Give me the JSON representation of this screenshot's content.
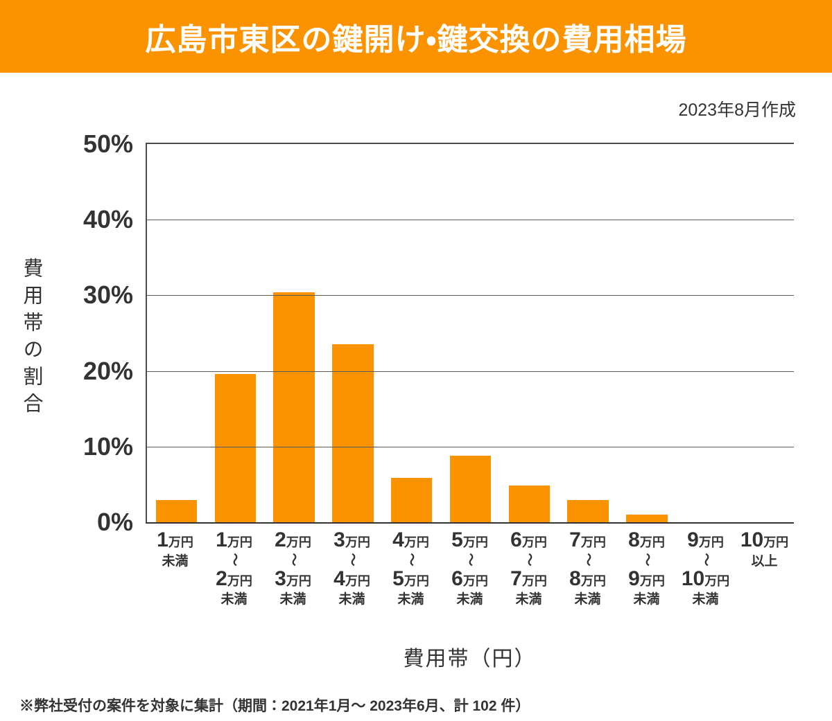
{
  "header": {
    "title": "広島市東区の鍵開け・鍵交換の費用相場",
    "created": "2023年8月作成"
  },
  "footer": {
    "note": "※弊社受付の案件を対象に集計（期間：2021年1月～ 2023年6月、計 102 件）"
  },
  "colors": {
    "accent": "#fb9300",
    "text": "#333333",
    "grid": "#595959"
  },
  "unit": "万円",
  "tilde": "～",
  "x_categories": [
    {
      "from": "1",
      "to": "",
      "note": "未満"
    },
    {
      "from": "1",
      "to": "2",
      "note": "未満"
    },
    {
      "from": "2",
      "to": "3",
      "note": "未満"
    },
    {
      "from": "3",
      "to": "4",
      "note": "未満"
    },
    {
      "from": "4",
      "to": "5",
      "note": "未満"
    },
    {
      "from": "5",
      "to": "6",
      "note": "未満"
    },
    {
      "from": "6",
      "to": "7",
      "note": "未満"
    },
    {
      "from": "7",
      "to": "8",
      "note": "未満"
    },
    {
      "from": "8",
      "to": "9",
      "note": "未満"
    },
    {
      "from": "9",
      "to": "10",
      "note": "未満"
    },
    {
      "from": "10",
      "to": "",
      "note": "以上"
    }
  ],
  "chart_data": {
    "type": "bar",
    "title": "広島市東区の鍵開け・鍵交換の費用相場",
    "categories": [
      "1万円未満",
      "1万円～2万円未満",
      "2万円～3万円未満",
      "3万円～4万円未満",
      "4万円～5万円未満",
      "5万円～6万円未満",
      "6万円～7万円未満",
      "7万円～8万円未満",
      "8万円～9万円未満",
      "9万円～10万円未満",
      "10万円以上"
    ],
    "values": [
      2.9,
      19.6,
      30.4,
      23.5,
      5.9,
      8.8,
      4.9,
      2.9,
      1.0,
      0,
      0
    ],
    "xlabel": "費用帯（円）",
    "ylabel": "費用帯の割合",
    "ylim": [
      0,
      50
    ],
    "yticks": [
      "50%",
      "40%",
      "30%",
      "20%",
      "10%",
      "0%"
    ],
    "grid": true,
    "legend": false,
    "bar_color": "#fb9300",
    "source_note": "※弊社受付の案件を対象に集計（期間：2021年1月～ 2023年6月、計 102 件）",
    "created": "2023年8月作成"
  }
}
